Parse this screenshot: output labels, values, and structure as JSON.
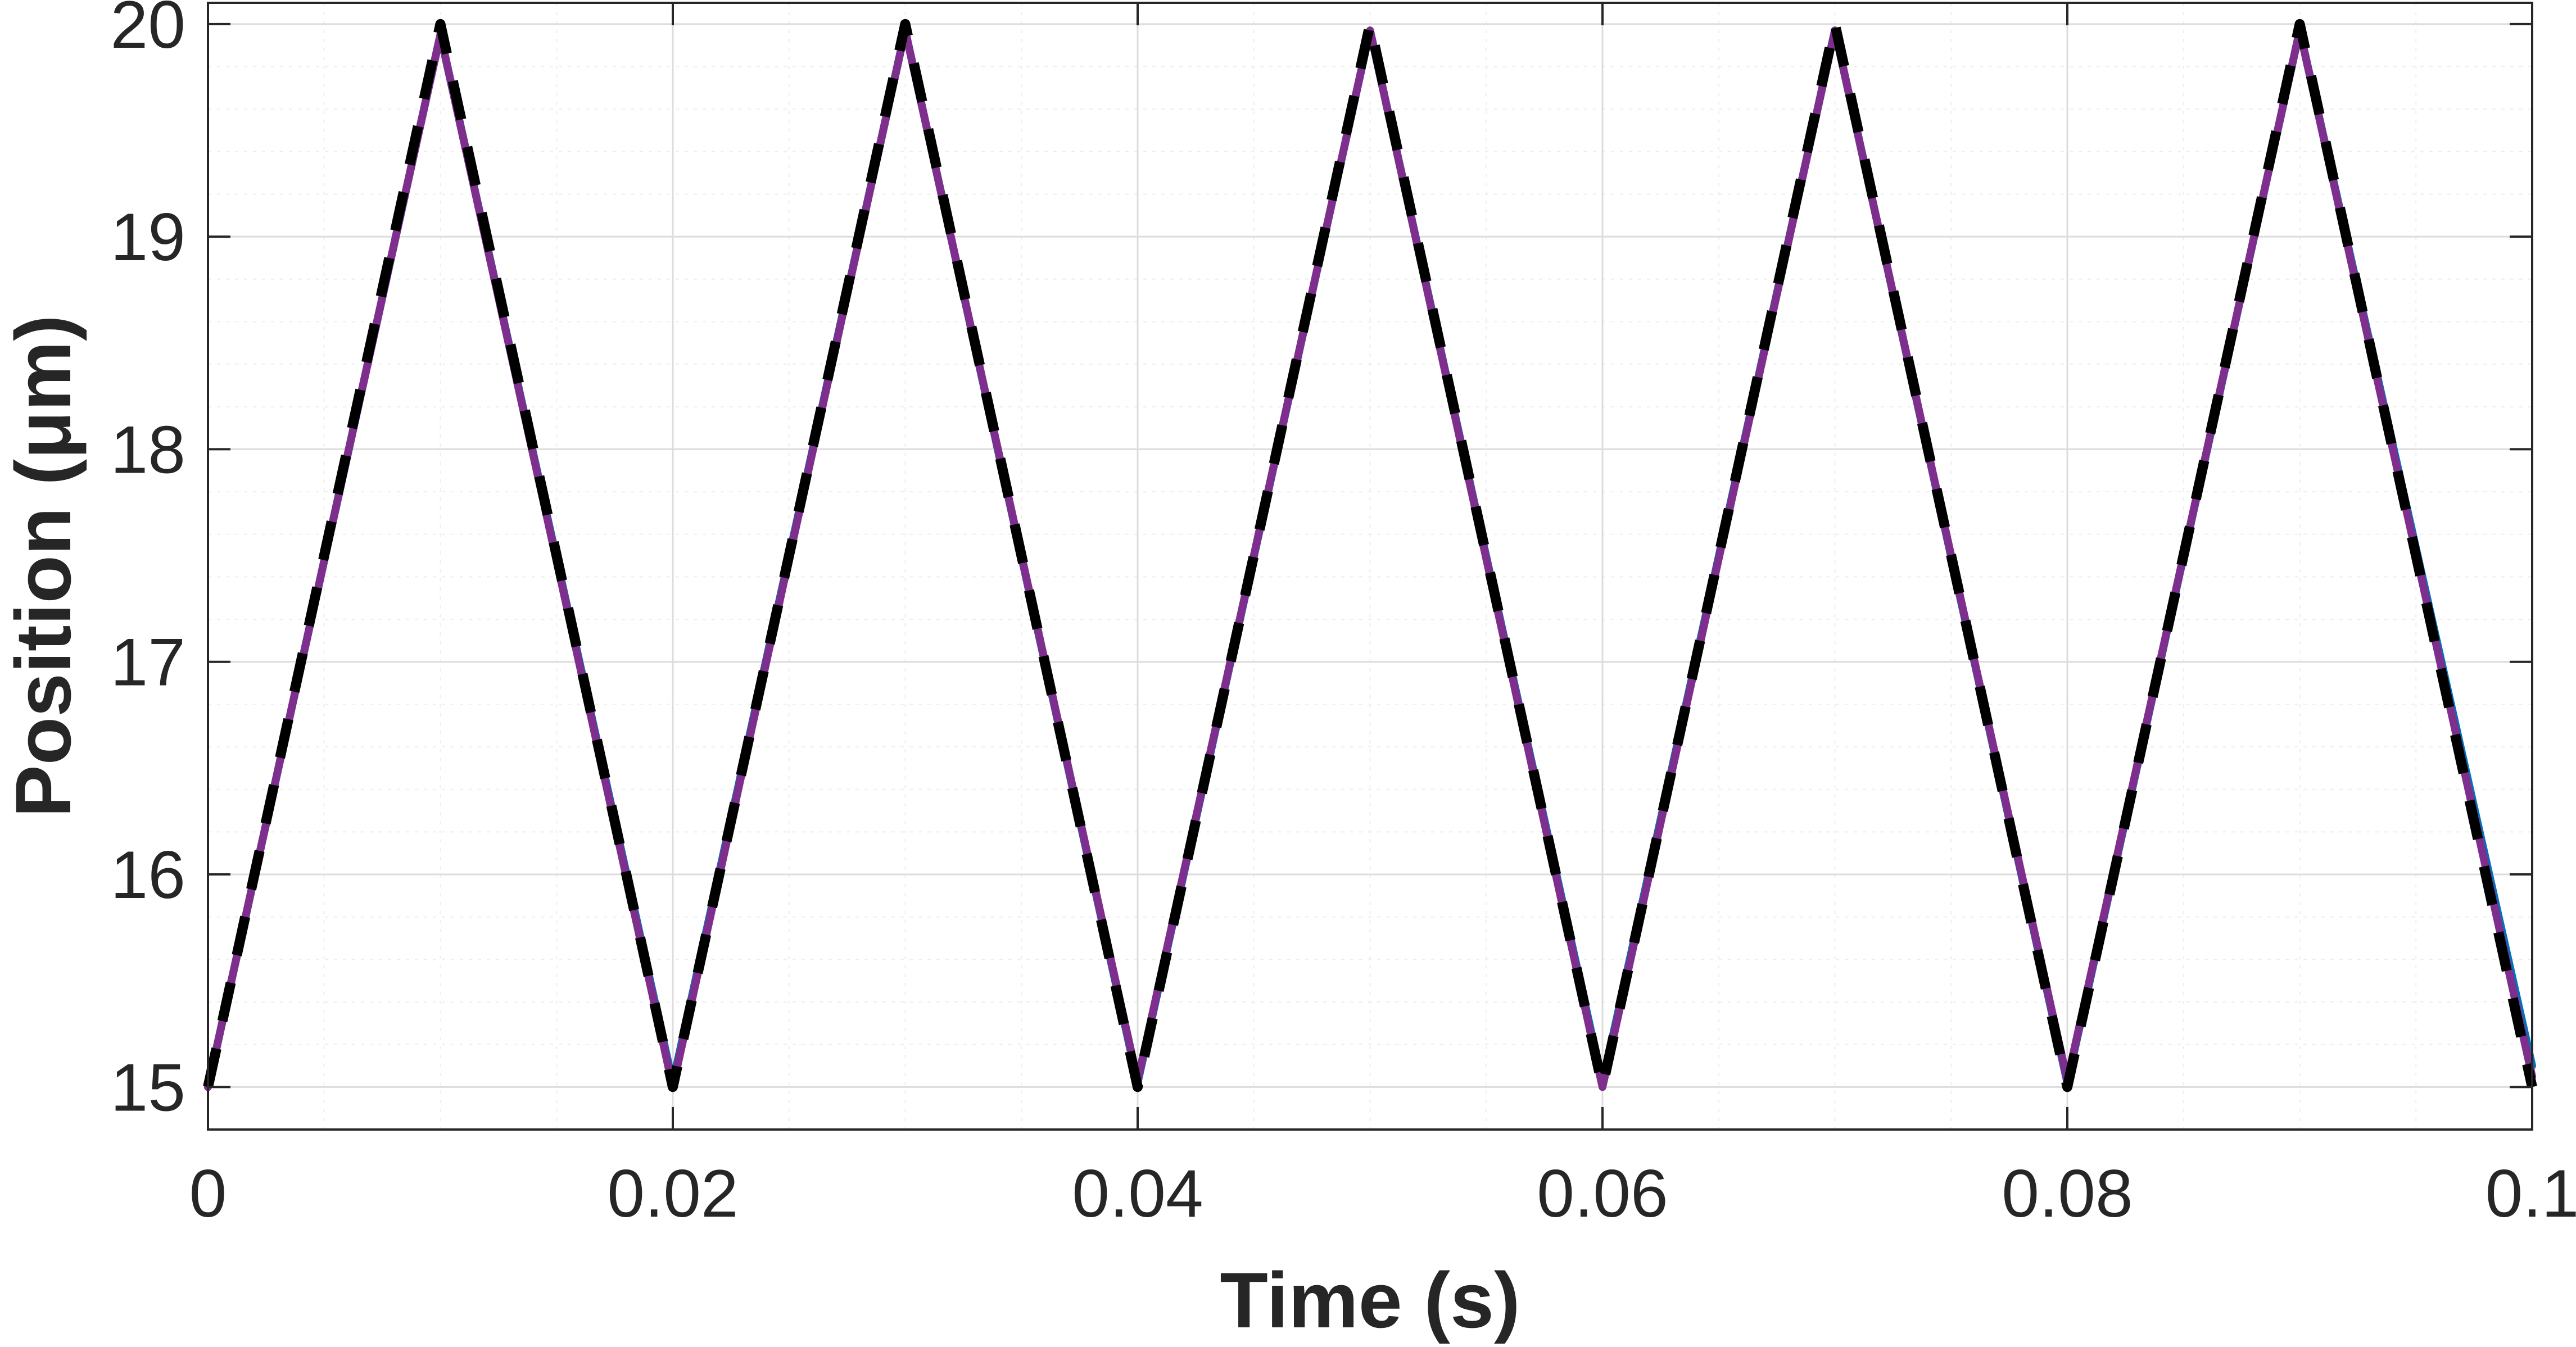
{
  "chart_data": {
    "type": "line",
    "title": "",
    "xlabel": "Time (s)",
    "ylabel": "Position (μm)",
    "xlim": [
      0,
      0.1
    ],
    "ylim": [
      14.8,
      20.1
    ],
    "xticks": [
      0,
      0.02,
      0.04,
      0.06,
      0.08,
      0.1
    ],
    "xtick_labels": [
      "0",
      "0.02",
      "0.04",
      "0.06",
      "0.08",
      "0.1"
    ],
    "yticks": [
      15,
      16,
      17,
      18,
      19,
      20
    ],
    "ytick_labels": [
      "15",
      "16",
      "17",
      "18",
      "19",
      "20"
    ],
    "grid": true,
    "minor_grid": true,
    "legend": "none",
    "series": [
      {
        "style": "solid",
        "color": "#0072BD",
        "x": [
          0,
          0.01,
          0.02,
          0.03,
          0.04,
          0.05,
          0.06,
          0.07,
          0.08,
          0.09,
          0.1
        ],
        "y": [
          15.0,
          19.95,
          15.02,
          19.97,
          15.02,
          19.97,
          15.02,
          19.97,
          15.02,
          19.97,
          15.1
        ]
      },
      {
        "style": "solid",
        "color": "#7E2F8E",
        "x": [
          0,
          0.01,
          0.02,
          0.03,
          0.04,
          0.05,
          0.06,
          0.07,
          0.08,
          0.09,
          0.1
        ],
        "y": [
          15.0,
          19.95,
          15.0,
          19.97,
          15.03,
          19.97,
          15.0,
          19.97,
          15.03,
          19.97,
          15.05
        ]
      },
      {
        "style": "dashed",
        "color": "#000000",
        "x": [
          0,
          0.01,
          0.02,
          0.03,
          0.04,
          0.05,
          0.06,
          0.07,
          0.08,
          0.09,
          0.1
        ],
        "y": [
          15.0,
          20.0,
          15.0,
          20.0,
          15.0,
          20.0,
          15.0,
          20.0,
          15.0,
          20.0,
          15.0
        ]
      }
    ]
  }
}
